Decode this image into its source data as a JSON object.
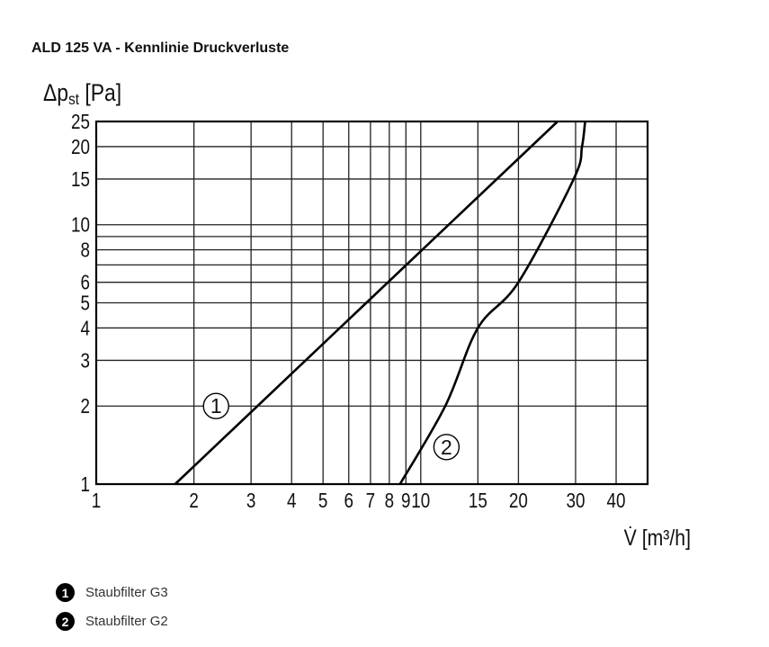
{
  "chart_data": {
    "type": "line",
    "title": "ALD 125 VA - Kennlinie Druckverluste",
    "xlabel": "V̇ [m³/h]",
    "ylabel_main": "Δp",
    "ylabel_sub": "st",
    "ylabel_unit": " [Pa]",
    "xscale": "log",
    "yscale": "log",
    "xlim": [
      1,
      50
    ],
    "ylim": [
      1,
      25
    ],
    "grid": true,
    "x_ticks": [
      1,
      2,
      3,
      4,
      5,
      6,
      7,
      8,
      9,
      10,
      15,
      20,
      30,
      40
    ],
    "x_tick_labels": [
      "1",
      "2",
      "3",
      "4",
      "5",
      "6",
      "7",
      "8",
      "9",
      "10",
      "15",
      "20",
      "30",
      "40"
    ],
    "x_grid": [
      2,
      3,
      4,
      5,
      6,
      7,
      8,
      9,
      10,
      15,
      20,
      30,
      40
    ],
    "y_ticks": [
      1,
      2,
      3,
      4,
      5,
      6,
      8,
      10,
      15,
      20,
      25
    ],
    "y_tick_labels": [
      "1",
      "2",
      "3",
      "4",
      "5",
      "6",
      "8",
      "10",
      "15",
      "20",
      "25"
    ],
    "y_grid": [
      2,
      3,
      4,
      5,
      6,
      7,
      8,
      9,
      10,
      15,
      20
    ],
    "series": [
      {
        "id": "1",
        "label": "1",
        "label_at": [
          2.34,
          2
        ],
        "points": [
          [
            1.75,
            1
          ],
          [
            26.4,
            25
          ]
        ]
      },
      {
        "id": "2",
        "label": "2",
        "label_at": [
          12.0,
          1.39
        ],
        "points": [
          [
            8.63,
            1
          ],
          [
            11.9,
            2
          ],
          [
            15,
            4
          ],
          [
            20,
            6
          ],
          [
            29.6,
            15
          ],
          [
            31.4,
            20
          ],
          [
            32.1,
            25
          ]
        ]
      }
    ],
    "legend": [
      {
        "marker": "1",
        "text": "Staubfilter G3"
      },
      {
        "marker": "2",
        "text": "Staubfilter G2"
      }
    ],
    "line_color": "#000000"
  }
}
